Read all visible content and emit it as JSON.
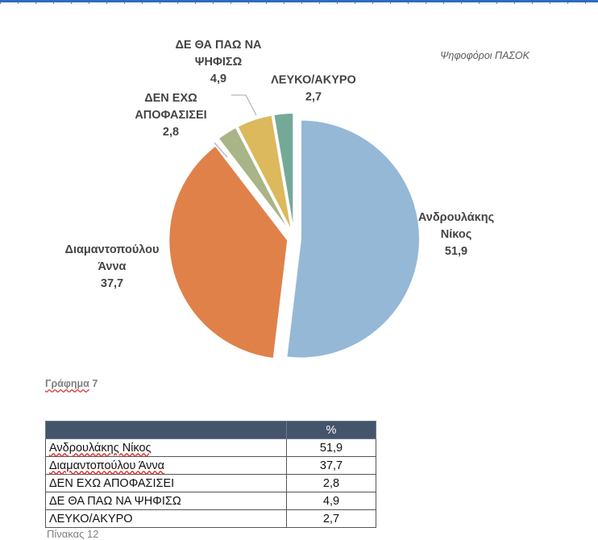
{
  "chart_data": {
    "type": "pie",
    "title": "Ψηφοφόροι ΠΑΣΟΚ",
    "slices": [
      {
        "label_lines": [
          "Ανδρουλάκης",
          "Νίκος"
        ],
        "value_text": "51,9",
        "value": 51.9,
        "color": "#95b8d6"
      },
      {
        "label_lines": [
          "Διαμαντοπούλου",
          "Άννα"
        ],
        "value_text": "37,7",
        "value": 37.7,
        "color": "#e0814a"
      },
      {
        "label_lines": [
          "ΔΕΝ ΕΧΩ",
          "ΑΠΟΦΑΣΙΣΕΙ"
        ],
        "value_text": "2,8",
        "value": 2.8,
        "color": "#a9b487"
      },
      {
        "label_lines": [
          "ΔΕ ΘΑ ΠΑΩ ΝΑ",
          "ΨΗΦΙΣΩ"
        ],
        "value_text": "4,9",
        "value": 4.9,
        "color": "#dbb95c"
      },
      {
        "label_lines": [
          "ΛΕΥΚΟ/ΑΚΥΡΟ"
        ],
        "value_text": "2,7",
        "value": 2.7,
        "color": "#74a998"
      }
    ]
  },
  "caption": {
    "word": "Γράφημα",
    "num": "7"
  },
  "table": {
    "header": [
      "",
      "%"
    ],
    "rows": [
      {
        "name": "Ανδρουλάκης Νίκος",
        "value": "51,9"
      },
      {
        "name": "Διαμαντοπούλου Άννα",
        "value": "37,7"
      },
      {
        "name": "ΔΕΝ ΕΧΩ ΑΠΟΦΑΣΙΣΕΙ",
        "value": "2,8"
      },
      {
        "name": "ΔΕ ΘΑ ΠΑΩ ΝΑ ΨΗΦΙΣΩ",
        "value": "4,9"
      },
      {
        "name": "ΛΕΥΚΟ/ΑΚΥΡΟ",
        "value": "2,7"
      }
    ]
  },
  "next_caption": "Πίνακας 12"
}
